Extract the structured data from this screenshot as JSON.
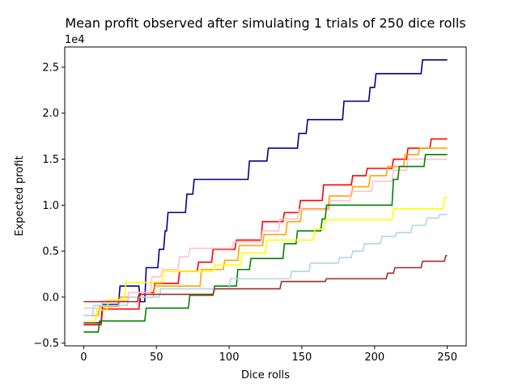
{
  "chart_data": {
    "type": "line",
    "title": "Mean profit observed after simulating 1 trials of 250 dice rolls",
    "xlabel": "Dice rolls",
    "ylabel": "Expected profit",
    "offset_label": "1e4",
    "xlim": [
      -13,
      263
    ],
    "ylim": [
      -0.53,
      2.72
    ],
    "x_ticks": [
      0,
      50,
      100,
      150,
      200,
      250
    ],
    "x_tick_labels": [
      "0",
      "50",
      "100",
      "150",
      "200",
      "250"
    ],
    "y_ticks": [
      -0.5,
      0.0,
      0.5,
      1.0,
      1.5,
      2.0,
      2.5
    ],
    "y_tick_labels": [
      "−0.5",
      "0.0",
      "0.5",
      "1.0",
      "1.5",
      "2.0",
      "2.5"
    ],
    "grid": false,
    "series": [
      {
        "color": "#00008b",
        "points": [
          [
            0,
            -0.28
          ],
          [
            12,
            -0.28
          ],
          [
            13,
            -0.08
          ],
          [
            24,
            -0.08
          ],
          [
            25,
            0.12
          ],
          [
            38,
            0.12
          ],
          [
            39,
            -0.05
          ],
          [
            42,
            -0.05
          ],
          [
            43,
            0.32
          ],
          [
            51,
            0.32
          ],
          [
            52,
            0.52
          ],
          [
            55,
            0.52
          ],
          [
            56,
            0.72
          ],
          [
            57,
            0.72
          ],
          [
            58,
            0.92
          ],
          [
            70,
            0.92
          ],
          [
            71,
            1.12
          ],
          [
            75,
            1.12
          ],
          [
            76,
            1.28
          ],
          [
            113,
            1.28
          ],
          [
            114,
            1.48
          ],
          [
            126,
            1.48
          ],
          [
            127,
            1.62
          ],
          [
            147,
            1.62
          ],
          [
            148,
            1.78
          ],
          [
            153,
            1.78
          ],
          [
            154,
            1.93
          ],
          [
            178,
            1.93
          ],
          [
            179,
            2.13
          ],
          [
            196,
            2.13
          ],
          [
            197,
            2.28
          ],
          [
            200,
            2.28
          ],
          [
            201,
            2.43
          ],
          [
            232,
            2.43
          ],
          [
            233,
            2.58
          ],
          [
            250,
            2.58
          ]
        ]
      },
      {
        "color": "#ff0000",
        "points": [
          [
            0,
            -0.3
          ],
          [
            12,
            -0.3
          ],
          [
            13,
            -0.13
          ],
          [
            38,
            -0.13
          ],
          [
            39,
            0.05
          ],
          [
            48,
            0.05
          ],
          [
            49,
            0.15
          ],
          [
            65,
            0.15
          ],
          [
            66,
            0.28
          ],
          [
            78,
            0.28
          ],
          [
            79,
            0.38
          ],
          [
            88,
            0.38
          ],
          [
            89,
            0.52
          ],
          [
            104,
            0.52
          ],
          [
            105,
            0.62
          ],
          [
            122,
            0.62
          ],
          [
            123,
            0.82
          ],
          [
            137,
            0.82
          ],
          [
            138,
            0.92
          ],
          [
            148,
            0.92
          ],
          [
            149,
            1.05
          ],
          [
            164,
            1.05
          ],
          [
            165,
            1.22
          ],
          [
            184,
            1.22
          ],
          [
            185,
            1.32
          ],
          [
            194,
            1.32
          ],
          [
            195,
            1.4
          ],
          [
            212,
            1.4
          ],
          [
            213,
            1.5
          ],
          [
            222,
            1.5
          ],
          [
            223,
            1.62
          ],
          [
            238,
            1.62
          ],
          [
            239,
            1.72
          ],
          [
            250,
            1.72
          ]
        ]
      },
      {
        "color": "#ffa500",
        "points": [
          [
            0,
            -0.2
          ],
          [
            10,
            -0.2
          ],
          [
            11,
            -0.1
          ],
          [
            24,
            -0.1
          ],
          [
            25,
            0.0
          ],
          [
            48,
            0.0
          ],
          [
            49,
            0.12
          ],
          [
            80,
            0.12
          ],
          [
            81,
            0.3
          ],
          [
            96,
            0.3
          ],
          [
            97,
            0.4
          ],
          [
            106,
            0.4
          ],
          [
            107,
            0.56
          ],
          [
            123,
            0.56
          ],
          [
            124,
            0.68
          ],
          [
            139,
            0.68
          ],
          [
            140,
            0.82
          ],
          [
            149,
            0.82
          ],
          [
            150,
            0.96
          ],
          [
            168,
            0.96
          ],
          [
            169,
            1.1
          ],
          [
            184,
            1.1
          ],
          [
            185,
            1.2
          ],
          [
            196,
            1.2
          ],
          [
            197,
            1.32
          ],
          [
            208,
            1.32
          ],
          [
            209,
            1.42
          ],
          [
            220,
            1.42
          ],
          [
            221,
            1.55
          ],
          [
            230,
            1.55
          ],
          [
            231,
            1.62
          ],
          [
            250,
            1.62
          ]
        ]
      },
      {
        "color": "#ffc0cb",
        "points": [
          [
            0,
            -0.12
          ],
          [
            12,
            -0.12
          ],
          [
            13,
            -0.04
          ],
          [
            30,
            -0.04
          ],
          [
            31,
            0.05
          ],
          [
            46,
            0.05
          ],
          [
            47,
            0.22
          ],
          [
            53,
            0.22
          ],
          [
            54,
            0.3
          ],
          [
            65,
            0.3
          ],
          [
            66,
            0.44
          ],
          [
            72,
            0.44
          ],
          [
            73,
            0.53
          ],
          [
            102,
            0.53
          ],
          [
            103,
            0.6
          ],
          [
            122,
            0.6
          ],
          [
            123,
            0.72
          ],
          [
            134,
            0.72
          ],
          [
            135,
            0.85
          ],
          [
            147,
            0.85
          ],
          [
            148,
            0.95
          ],
          [
            169,
            0.95
          ],
          [
            170,
            1.05
          ],
          [
            183,
            1.05
          ],
          [
            184,
            1.15
          ],
          [
            198,
            1.15
          ],
          [
            199,
            1.26
          ],
          [
            212,
            1.26
          ],
          [
            213,
            1.38
          ],
          [
            222,
            1.38
          ],
          [
            223,
            1.5
          ],
          [
            250,
            1.5
          ]
        ]
      },
      {
        "color": "#008000",
        "points": [
          [
            0,
            -0.38
          ],
          [
            10,
            -0.38
          ],
          [
            11,
            -0.26
          ],
          [
            42,
            -0.26
          ],
          [
            43,
            -0.12
          ],
          [
            72,
            -0.12
          ],
          [
            73,
            0.02
          ],
          [
            89,
            0.02
          ],
          [
            90,
            0.12
          ],
          [
            105,
            0.12
          ],
          [
            106,
            0.3
          ],
          [
            114,
            0.3
          ],
          [
            115,
            0.42
          ],
          [
            137,
            0.42
          ],
          [
            138,
            0.58
          ],
          [
            146,
            0.58
          ],
          [
            147,
            0.72
          ],
          [
            163,
            0.72
          ],
          [
            164,
            0.85
          ],
          [
            166,
            0.85
          ],
          [
            167,
            1.0
          ],
          [
            212,
            1.0
          ],
          [
            213,
            1.28
          ],
          [
            216,
            1.28
          ],
          [
            217,
            1.42
          ],
          [
            234,
            1.42
          ],
          [
            235,
            1.55
          ],
          [
            250,
            1.55
          ]
        ]
      },
      {
        "color": "#ffff00",
        "points": [
          [
            0,
            -0.27
          ],
          [
            8,
            -0.27
          ],
          [
            9,
            -0.14
          ],
          [
            16,
            -0.14
          ],
          [
            17,
            -0.03
          ],
          [
            28,
            -0.03
          ],
          [
            29,
            0.16
          ],
          [
            54,
            0.16
          ],
          [
            55,
            0.28
          ],
          [
            89,
            0.28
          ],
          [
            90,
            0.35
          ],
          [
            108,
            0.35
          ],
          [
            109,
            0.48
          ],
          [
            125,
            0.48
          ],
          [
            126,
            0.62
          ],
          [
            158,
            0.62
          ],
          [
            159,
            0.74
          ],
          [
            165,
            0.74
          ],
          [
            166,
            0.84
          ],
          [
            212,
            0.84
          ],
          [
            213,
            0.96
          ],
          [
            247,
            0.96
          ],
          [
            248,
            1.08
          ],
          [
            250,
            1.08
          ]
        ]
      },
      {
        "color": "#add8e6",
        "points": [
          [
            0,
            -0.2
          ],
          [
            6,
            -0.2
          ],
          [
            7,
            -0.09
          ],
          [
            30,
            -0.09
          ],
          [
            31,
            0.0
          ],
          [
            52,
            0.0
          ],
          [
            53,
            0.09
          ],
          [
            100,
            0.09
          ],
          [
            101,
            0.2
          ],
          [
            142,
            0.2
          ],
          [
            143,
            0.28
          ],
          [
            155,
            0.28
          ],
          [
            156,
            0.37
          ],
          [
            175,
            0.37
          ],
          [
            176,
            0.43
          ],
          [
            184,
            0.43
          ],
          [
            185,
            0.5
          ],
          [
            192,
            0.5
          ],
          [
            193,
            0.58
          ],
          [
            204,
            0.58
          ],
          [
            205,
            0.66
          ],
          [
            214,
            0.66
          ],
          [
            215,
            0.7
          ],
          [
            225,
            0.7
          ],
          [
            226,
            0.78
          ],
          [
            235,
            0.78
          ],
          [
            236,
            0.86
          ],
          [
            244,
            0.86
          ],
          [
            245,
            0.9
          ],
          [
            250,
            0.9
          ]
        ]
      },
      {
        "color": "#a52a2a",
        "points": [
          [
            0,
            -0.05
          ],
          [
            37,
            -0.05
          ],
          [
            38,
            0.03
          ],
          [
            89,
            0.03
          ],
          [
            90,
            0.09
          ],
          [
            135,
            0.09
          ],
          [
            136,
            0.17
          ],
          [
            166,
            0.17
          ],
          [
            167,
            0.2
          ],
          [
            208,
            0.2
          ],
          [
            209,
            0.26
          ],
          [
            213,
            0.26
          ],
          [
            214,
            0.32
          ],
          [
            232,
            0.32
          ],
          [
            233,
            0.39
          ],
          [
            248,
            0.39
          ],
          [
            249,
            0.45
          ],
          [
            250,
            0.45
          ]
        ]
      }
    ]
  }
}
